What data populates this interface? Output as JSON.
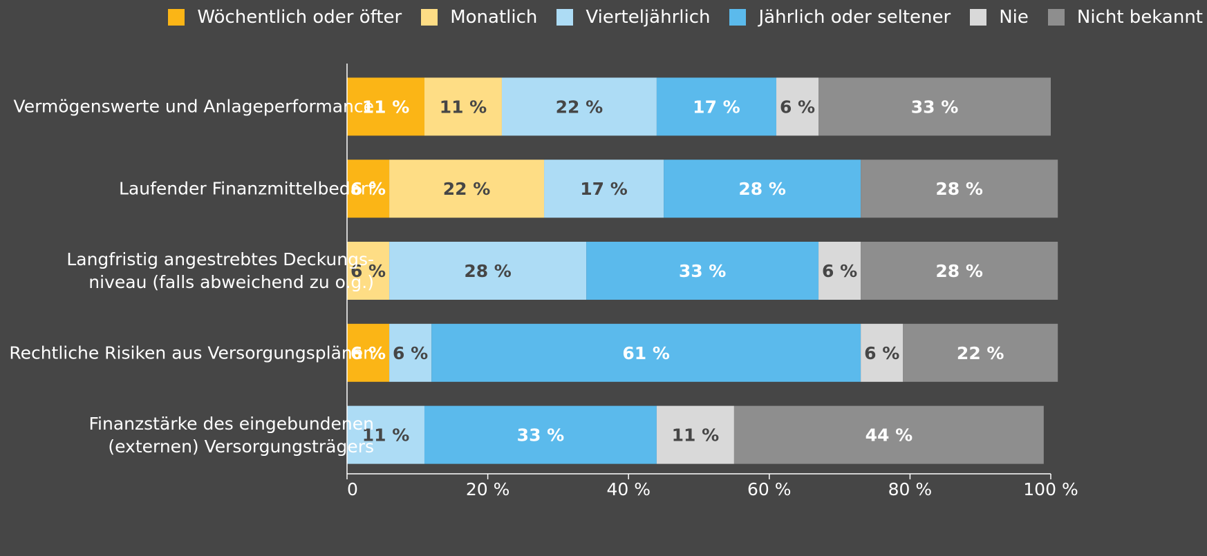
{
  "chart_data": {
    "type": "stacked-barh",
    "categories": [
      "Vermögenswerte und Anlageperformance",
      "Laufender Finanzmittelbedarf",
      "Langfristig angestrebtes Deckungs-\nniveau (falls abweichend zu o.g.)",
      "Rechtliche Risiken aus Versorgungsplänen",
      "Finanzstärke des eingebundenen\n(externen) Versorgungsträgers"
    ],
    "series": [
      {
        "name": "Wöchentlich oder öfter",
        "color": "#fbb516",
        "label_color": "#ffffff",
        "values": [
          11,
          6,
          null,
          6,
          null
        ],
        "value_labels": [
          "11 %",
          "6 %",
          null,
          "6 %",
          null
        ]
      },
      {
        "name": "Monatlich",
        "color": "#fedd85",
        "label_color": "#464646",
        "values": [
          11,
          22,
          6,
          null,
          null
        ],
        "value_labels": [
          "11 %",
          "22 %",
          "6 %",
          null,
          null
        ]
      },
      {
        "name": "Vierteljährlich",
        "color": "#addcf5",
        "label_color": "#464646",
        "values": [
          22,
          17,
          28,
          6,
          11
        ],
        "value_labels": [
          "22 %",
          "17 %",
          "28 %",
          "6 %",
          "11 %"
        ]
      },
      {
        "name": "Jährlich oder seltener",
        "color": "#5bbaec",
        "label_color": "#ffffff",
        "values": [
          17,
          28,
          33,
          61,
          33
        ],
        "value_labels": [
          "17 %",
          "28 %",
          "33 %",
          "61 %",
          "33 %"
        ]
      },
      {
        "name": "Nie",
        "color": "#d9d9d9",
        "label_color": "#464646",
        "values": [
          6,
          null,
          6,
          6,
          11
        ],
        "value_labels": [
          "6 %",
          null,
          "6 %",
          "6 %",
          "11 %"
        ]
      },
      {
        "name": "Nicht bekannt",
        "color": "#8e8e8e",
        "label_color": "#ffffff",
        "values": [
          33,
          28,
          28,
          22,
          44
        ],
        "value_labels": [
          "33 %",
          "28 %",
          "28 %",
          "22 %",
          "44 %"
        ]
      }
    ],
    "xlim": [
      0,
      100
    ],
    "xticks": [
      0,
      {
        "value": 20,
        "label": "20 %"
      },
      {
        "value": 40,
        "label": "40 %"
      },
      {
        "value": 60,
        "label": "60 %"
      },
      {
        "value": 80,
        "label": "80 %"
      },
      {
        "value": 100,
        "label": "100 %"
      }
    ],
    "grid": false,
    "legend": "top"
  }
}
